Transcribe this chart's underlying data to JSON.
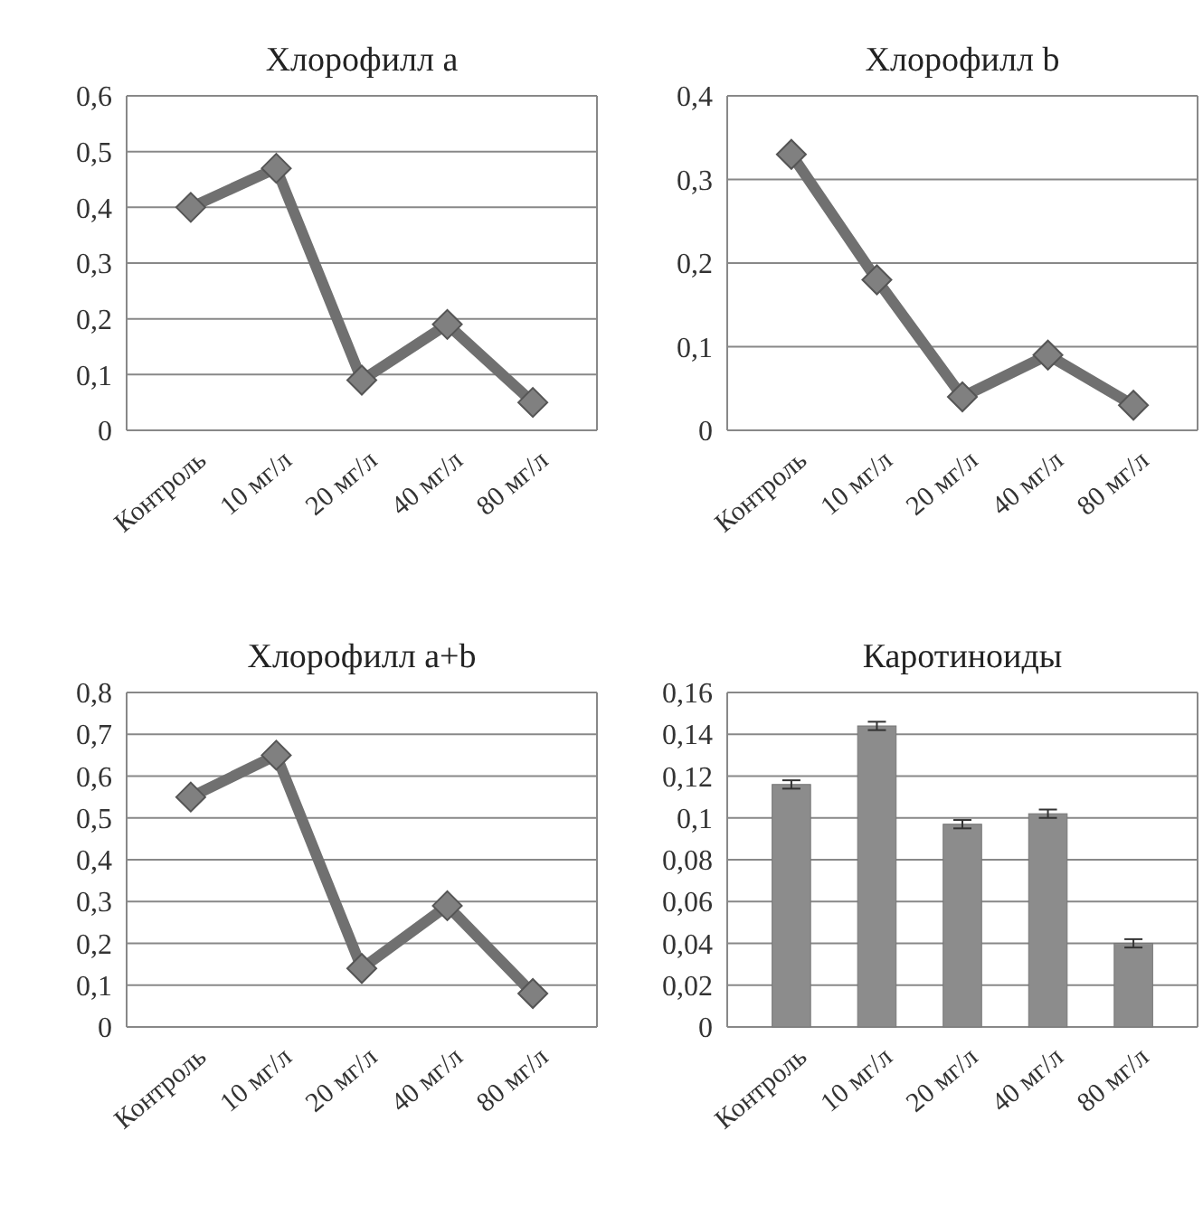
{
  "chart_data": [
    {
      "type": "line",
      "title": "Хлорофилл a",
      "categories": [
        "Контроль",
        "10 мг/л",
        "20 мг/л",
        "40 мг/л",
        "80 мг/л"
      ],
      "series": [
        {
          "color": "#707070",
          "values": [
            0.4,
            0.47,
            0.09,
            0.19,
            0.05
          ]
        }
      ],
      "marker": "diamond",
      "line_style": "solid",
      "grid": "y",
      "ylim": [
        0,
        0.6
      ],
      "yticks": [
        {
          "value": 0,
          "label": "0"
        },
        {
          "value": 0.1,
          "label": "0,1"
        },
        {
          "value": 0.2,
          "label": "0,2"
        },
        {
          "value": 0.3,
          "label": "0,3"
        },
        {
          "value": 0.4,
          "label": "0,4"
        },
        {
          "value": 0.5,
          "label": "0,5"
        },
        {
          "value": 0.6,
          "label": "0,6"
        }
      ]
    },
    {
      "type": "line",
      "title": "Хлорофилл b",
      "categories": [
        "Контроль",
        "10 мг/л",
        "20 мг/л",
        "40 мг/л",
        "80 мг/л"
      ],
      "series": [
        {
          "color": "#707070",
          "values": [
            0.33,
            0.18,
            0.04,
            0.09,
            0.03
          ]
        }
      ],
      "marker": "diamond",
      "line_style": "solid",
      "grid": "y",
      "ylim": [
        0,
        0.4
      ],
      "yticks": [
        {
          "value": 0,
          "label": "0"
        },
        {
          "value": 0.1,
          "label": "0,1"
        },
        {
          "value": 0.2,
          "label": "0,2"
        },
        {
          "value": 0.3,
          "label": "0,3"
        },
        {
          "value": 0.4,
          "label": "0,4"
        }
      ]
    },
    {
      "type": "line",
      "title": "Хлорофилл  a+b",
      "categories": [
        "Контроль",
        "10 мг/л",
        "20 мг/л",
        "40 мг/л",
        "80 мг/л"
      ],
      "series": [
        {
          "color": "#707070",
          "values": [
            0.55,
            0.65,
            0.14,
            0.29,
            0.08
          ]
        }
      ],
      "marker": "diamond",
      "line_style": "solid",
      "grid": "y",
      "ylim": [
        0,
        0.8
      ],
      "yticks": [
        {
          "value": 0,
          "label": "0"
        },
        {
          "value": 0.1,
          "label": "0,1"
        },
        {
          "value": 0.2,
          "label": "0,2"
        },
        {
          "value": 0.3,
          "label": "0,3"
        },
        {
          "value": 0.4,
          "label": "0,4"
        },
        {
          "value": 0.5,
          "label": "0,5"
        },
        {
          "value": 0.6,
          "label": "0,6"
        },
        {
          "value": 0.7,
          "label": "0,7"
        },
        {
          "value": 0.8,
          "label": "0,8"
        }
      ]
    },
    {
      "type": "bar",
      "title": "Каротиноиды",
      "categories": [
        "Контроль",
        "10 мг/л",
        "20 мг/л",
        "40 мг/л",
        "80 мг/л"
      ],
      "values": [
        0.116,
        0.144,
        0.097,
        0.102,
        0.04
      ],
      "errors": [
        0.002,
        0.002,
        0.002,
        0.002,
        0.002
      ],
      "color": "#8c8c8c",
      "grid": "y",
      "ylim": [
        0,
        0.16
      ],
      "yticks": [
        {
          "value": 0,
          "label": "0"
        },
        {
          "value": 0.02,
          "label": "0,02"
        },
        {
          "value": 0.04,
          "label": "0,04"
        },
        {
          "value": 0.06,
          "label": "0,06"
        },
        {
          "value": 0.08,
          "label": "0,08"
        },
        {
          "value": 0.1,
          "label": "0,1"
        },
        {
          "value": 0.12,
          "label": "0,12"
        },
        {
          "value": 0.14,
          "label": "0,14"
        },
        {
          "value": 0.16,
          "label": "0,16"
        }
      ]
    }
  ]
}
